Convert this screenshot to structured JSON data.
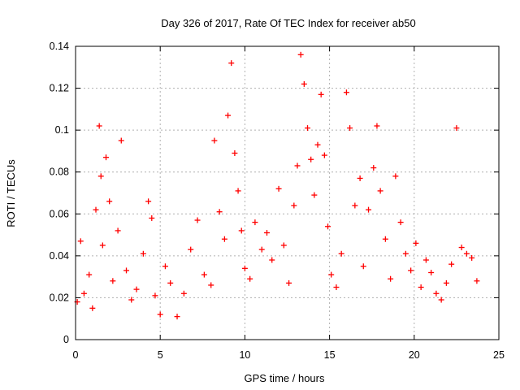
{
  "chart_data": {
    "type": "scatter",
    "title": "Day 326 of 2017, Rate Of TEC Index for receiver ab50",
    "xlabel": "GPS time / hours",
    "ylabel": "ROTI / TECUs",
    "xlim": [
      0,
      25
    ],
    "ylim": [
      0,
      0.14
    ],
    "xticks": [
      0,
      5,
      10,
      15,
      20,
      25
    ],
    "yticks": [
      0,
      0.02,
      0.04,
      0.06,
      0.08,
      0.1,
      0.12,
      0.14
    ],
    "xtick_labels": [
      "0",
      "5",
      "10",
      "15",
      "20",
      "25"
    ],
    "ytick_labels": [
      "0",
      "0.02",
      "0.04",
      "0.06",
      "0.08",
      "0.1",
      "0.12",
      "0.14"
    ],
    "grid": true,
    "marker": "+",
    "color": "#ff0000",
    "series": [
      {
        "x": [
          0.1,
          0.3,
          0.5,
          0.8,
          1.0,
          1.2,
          1.4,
          1.5,
          1.6,
          1.8,
          2.0,
          2.2,
          2.5,
          2.7,
          3.0,
          3.3,
          3.6,
          4.0,
          4.3,
          4.5,
          4.7,
          5.0,
          5.3,
          5.6,
          6.0,
          6.4,
          6.8,
          7.2,
          7.6,
          8.0,
          8.2,
          8.5,
          8.8,
          9.0,
          9.2,
          9.4,
          9.6,
          9.8,
          10.0,
          10.3,
          10.6,
          11.0,
          11.3,
          11.6,
          12.0,
          12.3,
          12.6,
          12.9,
          13.1,
          13.3,
          13.5,
          13.7,
          13.9,
          14.1,
          14.3,
          14.5,
          14.7,
          14.9,
          15.1,
          15.4,
          15.7,
          16.0,
          16.2,
          16.5,
          16.8,
          17.0,
          17.3,
          17.6,
          17.8,
          18.0,
          18.3,
          18.6,
          18.9,
          19.2,
          19.5,
          19.8,
          20.1,
          20.4,
          20.7,
          21.0,
          21.3,
          21.6,
          21.9,
          22.2,
          22.5,
          22.8,
          23.1,
          23.4,
          23.7
        ],
        "y": [
          0.018,
          0.047,
          0.022,
          0.031,
          0.015,
          0.062,
          0.102,
          0.078,
          0.045,
          0.087,
          0.066,
          0.028,
          0.052,
          0.095,
          0.033,
          0.019,
          0.024,
          0.041,
          0.066,
          0.058,
          0.021,
          0.012,
          0.035,
          0.027,
          0.011,
          0.022,
          0.043,
          0.057,
          0.031,
          0.026,
          0.095,
          0.061,
          0.048,
          0.107,
          0.132,
          0.089,
          0.071,
          0.052,
          0.034,
          0.029,
          0.056,
          0.043,
          0.051,
          0.038,
          0.072,
          0.045,
          0.027,
          0.064,
          0.083,
          0.136,
          0.122,
          0.101,
          0.086,
          0.069,
          0.093,
          0.117,
          0.088,
          0.054,
          0.031,
          0.025,
          0.041,
          0.118,
          0.101,
          0.064,
          0.077,
          0.035,
          0.062,
          0.082,
          0.102,
          0.071,
          0.048,
          0.029,
          0.078,
          0.056,
          0.041,
          0.033,
          0.046,
          0.025,
          0.038,
          0.032,
          0.022,
          0.019,
          0.027,
          0.036,
          0.101,
          0.044,
          0.041,
          0.039,
          0.028
        ]
      }
    ]
  }
}
